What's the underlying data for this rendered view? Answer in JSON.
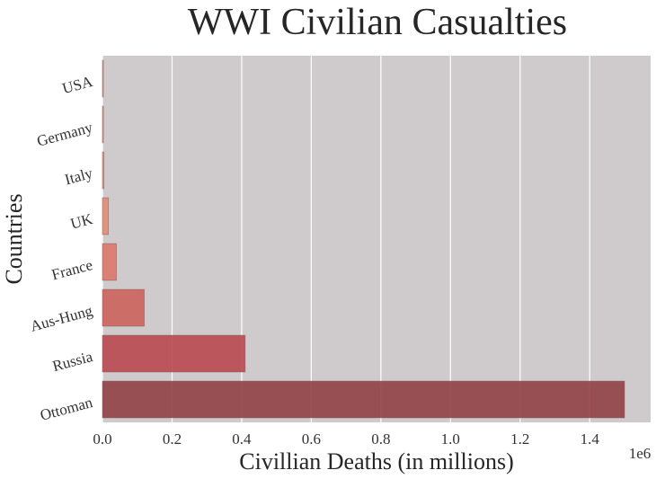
{
  "chart_data": {
    "type": "bar",
    "orientation": "horizontal",
    "title": "WWI Civilian Casualties",
    "xlabel": "Civillian Deaths (in millions)",
    "ylabel": "Countries",
    "x_offset_label": "1e6",
    "xlim": [
      0,
      1575000
    ],
    "x_ticks": [
      0,
      200000,
      400000,
      600000,
      800000,
      1000000,
      1200000,
      1400000
    ],
    "x_tick_labels": [
      "0.0",
      "0.2",
      "0.4",
      "0.6",
      "0.8",
      "1.0",
      "1.2",
      "1.4"
    ],
    "grid": true,
    "categories": [
      "USA",
      "Germany",
      "Italy",
      "UK",
      "France",
      "Aus-Hung",
      "Russia",
      "Ottoman"
    ],
    "values": [
      757,
      1000,
      4000,
      17000,
      40000,
      120000,
      410000,
      1500000
    ],
    "colors": [
      "#d2a8a1",
      "#d6a594",
      "#dc9b80",
      "#e0907a",
      "#dc7a6d",
      "#cd6560",
      "#b84c53",
      "#944449"
    ],
    "plot_background": "#cfcacc"
  }
}
